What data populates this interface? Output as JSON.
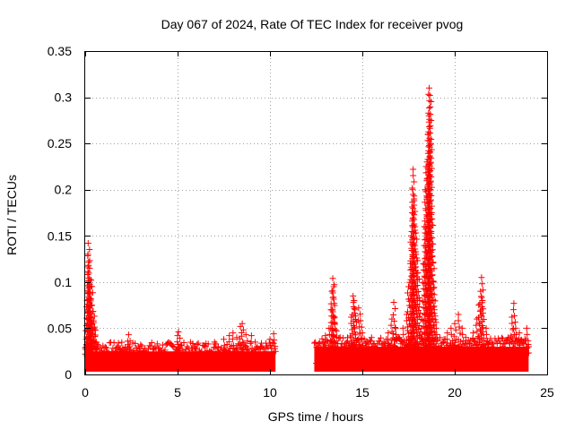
{
  "chart_data": {
    "type": "scatter",
    "title": "Day 067 of 2024, Rate Of TEC Index for receiver pvog",
    "xlabel": "GPS time / hours",
    "ylabel": "ROTI / TECUs",
    "xlim": [
      0,
      25
    ],
    "ylim": [
      0,
      0.35
    ],
    "x_ticks": [
      0,
      5,
      10,
      15,
      20,
      25
    ],
    "x_tick_labels": [
      "0",
      "5",
      "10",
      "15",
      "20",
      "25"
    ],
    "y_ticks": [
      0,
      0.05,
      0.1,
      0.15,
      0.2,
      0.25,
      0.3,
      0.35
    ],
    "y_tick_labels": [
      "0",
      "0.05",
      "0.1",
      "0.15",
      "0.2",
      "0.25",
      "0.3",
      "0.35"
    ],
    "grid": true,
    "marker": "+",
    "marker_color": "#ff0000",
    "series": [
      {
        "name": "ROTI",
        "points": [
          [
            0.0,
            0.022
          ],
          [
            0.05,
            0.038
          ],
          [
            0.08,
            0.061
          ],
          [
            0.1,
            0.08
          ],
          [
            0.12,
            0.096
          ],
          [
            0.15,
            0.13
          ],
          [
            0.16,
            0.142
          ],
          [
            0.18,
            0.118
          ],
          [
            0.2,
            0.1
          ],
          [
            0.22,
            0.088
          ],
          [
            0.25,
            0.072
          ],
          [
            0.28,
            0.055
          ],
          [
            0.3,
            0.095
          ],
          [
            0.32,
            0.102
          ],
          [
            0.35,
            0.075
          ],
          [
            0.38,
            0.05
          ],
          [
            0.4,
            0.03
          ],
          [
            0.45,
            0.058
          ],
          [
            0.5,
            0.063
          ],
          [
            0.55,
            0.048
          ],
          [
            0.6,
            0.035
          ],
          [
            0.7,
            0.02
          ],
          [
            0.8,
            0.014
          ],
          [
            0.9,
            0.018
          ],
          [
            1.0,
            0.012
          ],
          [
            1.2,
            0.015
          ],
          [
            1.5,
            0.01
          ],
          [
            1.7,
            0.022
          ],
          [
            1.8,
            0.034
          ],
          [
            1.9,
            0.028
          ],
          [
            2.0,
            0.016
          ],
          [
            2.2,
            0.02
          ],
          [
            2.3,
            0.036
          ],
          [
            2.35,
            0.043
          ],
          [
            2.4,
            0.03
          ],
          [
            2.6,
            0.022
          ],
          [
            2.8,
            0.018
          ],
          [
            3.0,
            0.025
          ],
          [
            3.2,
            0.014
          ],
          [
            3.5,
            0.02
          ],
          [
            3.8,
            0.017
          ],
          [
            4.0,
            0.024
          ],
          [
            4.2,
            0.019
          ],
          [
            4.5,
            0.015
          ],
          [
            4.8,
            0.022
          ],
          [
            5.0,
            0.042
          ],
          [
            5.05,
            0.046
          ],
          [
            5.1,
            0.03
          ],
          [
            5.3,
            0.022
          ],
          [
            5.5,
            0.02
          ],
          [
            5.8,
            0.026
          ],
          [
            6.0,
            0.028
          ],
          [
            6.2,
            0.024
          ],
          [
            6.5,
            0.03
          ],
          [
            6.8,
            0.025
          ],
          [
            7.0,
            0.035
          ],
          [
            7.2,
            0.03
          ],
          [
            7.5,
            0.038
          ],
          [
            7.8,
            0.042
          ],
          [
            8.0,
            0.045
          ],
          [
            8.2,
            0.04
          ],
          [
            8.4,
            0.052
          ],
          [
            8.5,
            0.055
          ],
          [
            8.7,
            0.043
          ],
          [
            9.0,
            0.042
          ],
          [
            9.2,
            0.035
          ],
          [
            9.5,
            0.03
          ],
          [
            9.8,
            0.028
          ],
          [
            10.0,
            0.038
          ],
          [
            10.2,
            0.044
          ],
          [
            10.3,
            0.025
          ],
          [
            12.5,
            0.012
          ],
          [
            12.7,
            0.022
          ],
          [
            12.9,
            0.03
          ],
          [
            13.0,
            0.042
          ],
          [
            13.2,
            0.05
          ],
          [
            13.3,
            0.07
          ],
          [
            13.35,
            0.09
          ],
          [
            13.4,
            0.104
          ],
          [
            13.45,
            0.095
          ],
          [
            13.5,
            0.062
          ],
          [
            13.6,
            0.047
          ],
          [
            13.8,
            0.04
          ],
          [
            14.0,
            0.03
          ],
          [
            14.2,
            0.04
          ],
          [
            14.4,
            0.062
          ],
          [
            14.5,
            0.085
          ],
          [
            14.55,
            0.08
          ],
          [
            14.6,
            0.07
          ],
          [
            14.8,
            0.072
          ],
          [
            14.9,
            0.058
          ],
          [
            15.0,
            0.045
          ],
          [
            15.2,
            0.035
          ],
          [
            15.5,
            0.04
          ],
          [
            15.8,
            0.028
          ],
          [
            16.0,
            0.025
          ],
          [
            16.2,
            0.03
          ],
          [
            16.4,
            0.045
          ],
          [
            16.6,
            0.06
          ],
          [
            16.7,
            0.078
          ],
          [
            16.8,
            0.05
          ],
          [
            17.0,
            0.04
          ],
          [
            17.2,
            0.05
          ],
          [
            17.4,
            0.065
          ],
          [
            17.5,
            0.095
          ],
          [
            17.6,
            0.12
          ],
          [
            17.65,
            0.15
          ],
          [
            17.7,
            0.175
          ],
          [
            17.72,
            0.2
          ],
          [
            17.75,
            0.222
          ],
          [
            17.8,
            0.19
          ],
          [
            17.85,
            0.16
          ],
          [
            17.9,
            0.13
          ],
          [
            18.0,
            0.11
          ],
          [
            18.1,
            0.08
          ],
          [
            18.2,
            0.05
          ],
          [
            18.3,
            0.12
          ],
          [
            18.35,
            0.16
          ],
          [
            18.4,
            0.2
          ],
          [
            18.45,
            0.225
          ],
          [
            18.5,
            0.23
          ],
          [
            18.55,
            0.26
          ],
          [
            18.6,
            0.28
          ],
          [
            18.62,
            0.31
          ],
          [
            18.65,
            0.302
          ],
          [
            18.7,
            0.25
          ],
          [
            18.75,
            0.175
          ],
          [
            18.8,
            0.135
          ],
          [
            18.85,
            0.1
          ],
          [
            18.9,
            0.07
          ],
          [
            19.0,
            0.05
          ],
          [
            19.2,
            0.04
          ],
          [
            19.4,
            0.035
          ],
          [
            19.6,
            0.045
          ],
          [
            19.8,
            0.05
          ],
          [
            20.0,
            0.055
          ],
          [
            20.2,
            0.065
          ],
          [
            20.4,
            0.05
          ],
          [
            20.6,
            0.04
          ],
          [
            20.8,
            0.03
          ],
          [
            21.0,
            0.045
          ],
          [
            21.2,
            0.06
          ],
          [
            21.3,
            0.075
          ],
          [
            21.4,
            0.09
          ],
          [
            21.45,
            0.105
          ],
          [
            21.5,
            0.08
          ],
          [
            21.7,
            0.05
          ],
          [
            22.0,
            0.03
          ],
          [
            22.3,
            0.025
          ],
          [
            22.6,
            0.03
          ],
          [
            22.9,
            0.04
          ],
          [
            23.1,
            0.062
          ],
          [
            23.2,
            0.077
          ],
          [
            23.3,
            0.05
          ],
          [
            23.5,
            0.045
          ],
          [
            23.7,
            0.035
          ],
          [
            23.9,
            0.05
          ],
          [
            24.0,
            0.03
          ]
        ]
      }
    ],
    "dense_band": [
      {
        "x_start": 0.0,
        "x_end": 10.3,
        "y_low": 0.003,
        "y_high": 0.025
      },
      {
        "x_start": 12.4,
        "x_end": 24.0,
        "y_low": 0.003,
        "y_high": 0.03
      }
    ]
  }
}
